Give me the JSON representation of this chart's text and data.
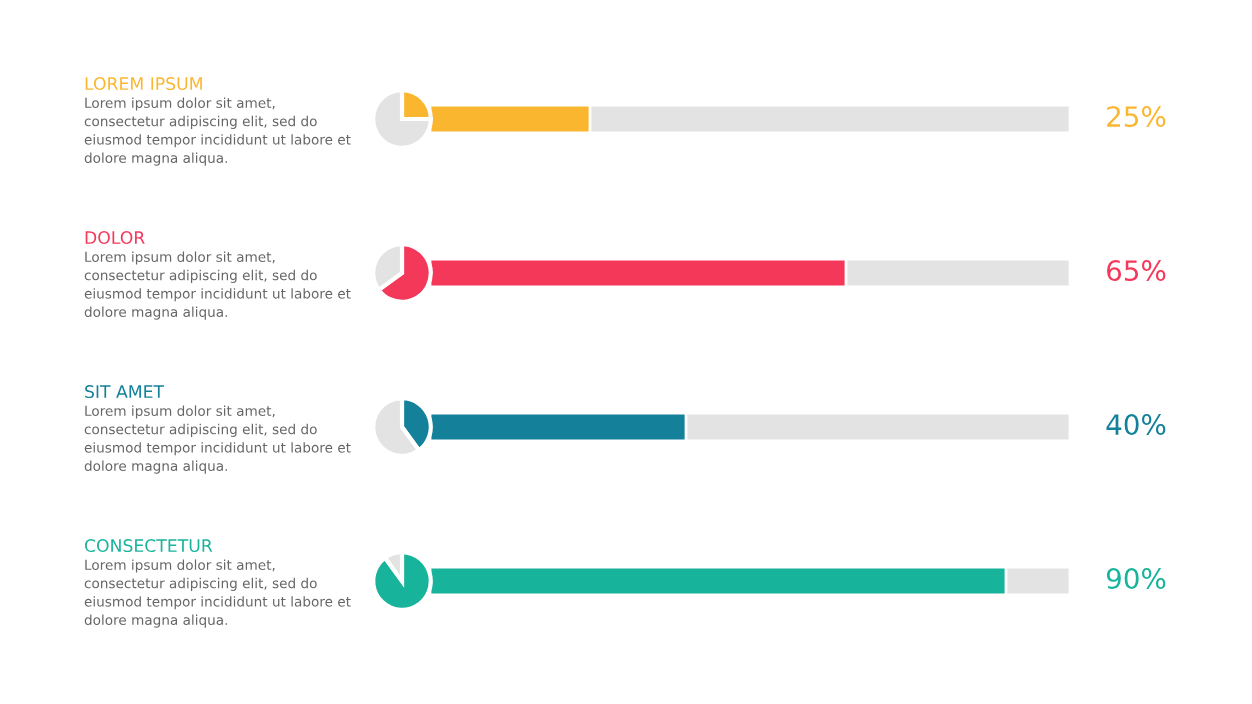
{
  "chart_data": {
    "type": "bar",
    "orientation": "horizontal",
    "categories": [
      "LOREM IPSUM",
      "DOLOR",
      "SIT AMET",
      "CONSECTETUR"
    ],
    "values": [
      25,
      65,
      40,
      90
    ],
    "colors": [
      "#fbb630",
      "#f4385a",
      "#14809a",
      "#17b39b"
    ],
    "value_labels": [
      "25%",
      "65%",
      "40%",
      "90%"
    ],
    "xlim": [
      0,
      100
    ],
    "legend": false,
    "annotations": [
      "Lorem ipsum dolor sit amet,\nconsectetur adipiscing elit, sed do\neiusmod tempor incididunt ut labore et\ndolore magna aliqua.",
      "Lorem ipsum dolor sit amet,\nconsectetur adipiscing elit, sed do\neiusmod tempor incididunt ut labore et\ndolore magna aliqua.",
      "Lorem ipsum dolor sit amet,\nconsectetur adipiscing elit, sed do\neiusmod tempor incididunt ut labore et\ndolore magna aliqua.",
      "Lorem ipsum dolor sit amet,\nconsectetur adipiscing elit, sed do\neiusmod tempor incididunt ut labore et\ndolore magna aliqua."
    ]
  }
}
